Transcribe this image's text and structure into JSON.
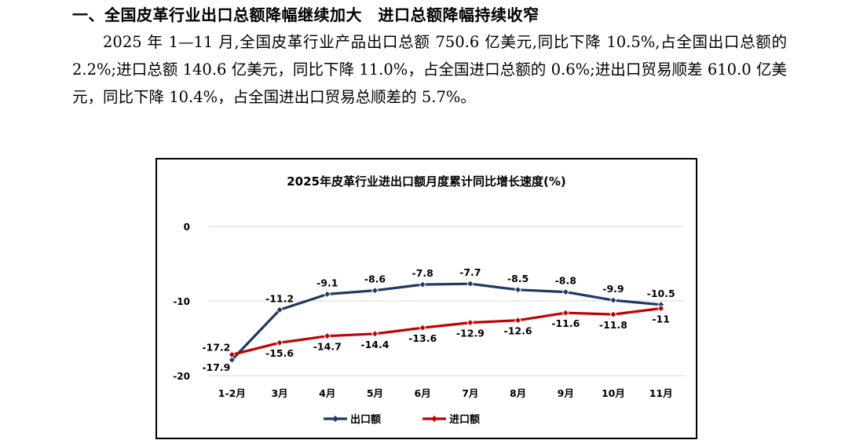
{
  "section": {
    "heading": "一、全国皮革行业出口总额降幅继续加大　进口总额降幅持续收窄",
    "paragraph": "2025 年 1—11 月,全国皮革行业产品出口总额 750.6 亿美元,同比下降 10.5%,占全国出口总额的 2.2%;进口总额 140.6 亿美元，同比下降 11.0%，占全国进口总额的 0.6%;进出口贸易顺差 610.0 亿美元，同比下降 10.4%，占全国进出口贸易总顺差的 5.7%。"
  },
  "chart_data": {
    "type": "line",
    "title": "2025年皮革行业进出口额月度累计同比增长速度(%)",
    "xlabel": "",
    "ylabel": "",
    "categories": [
      "1-2月",
      "3月",
      "4月",
      "5月",
      "6月",
      "7月",
      "8月",
      "9月",
      "10月",
      "11月"
    ],
    "ylim": [
      -20,
      0
    ],
    "yticks": [
      0,
      -10,
      -20
    ],
    "grid": true,
    "legend_position": "bottom",
    "series": [
      {
        "name": "出口额",
        "color": "#1F3864",
        "values": [
          -17.9,
          -11.2,
          -9.1,
          -8.6,
          -7.8,
          -7.7,
          -8.5,
          -8.8,
          -9.9,
          -10.5
        ],
        "label_side": "above"
      },
      {
        "name": "进口额",
        "color": "#C00000",
        "values": [
          -17.2,
          -15.6,
          -14.7,
          -14.4,
          -13.6,
          -12.9,
          -12.6,
          -11.6,
          -11.8,
          -11.0
        ],
        "label_side": "below"
      }
    ]
  }
}
